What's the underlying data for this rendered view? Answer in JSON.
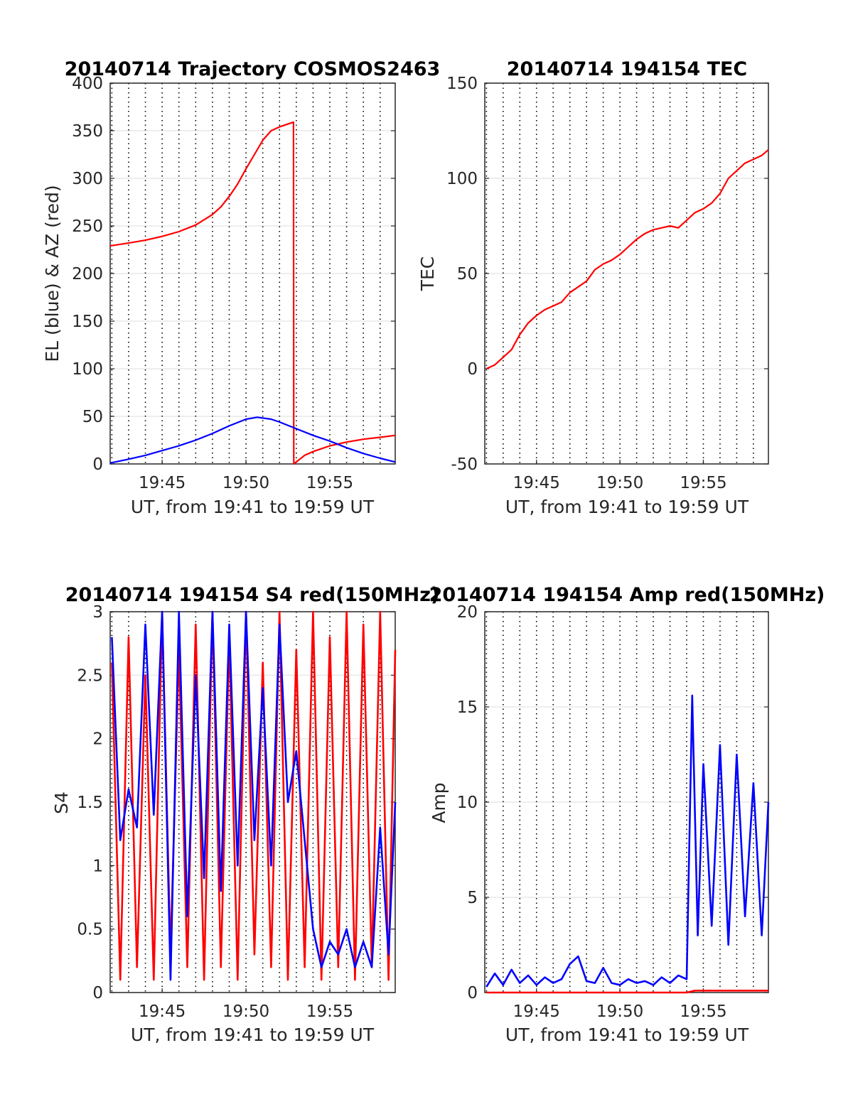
{
  "figure": {
    "background": "#ffffff"
  },
  "chart_data": [
    {
      "type": "line",
      "title": "20140714 Trajectory COSMOS2463",
      "xlabel": "UT, from 19:41 to 19:59 UT",
      "ylabel": "EL (blue) & AZ (red)",
      "xlim": [
        "19:41:54",
        "19:58:54"
      ],
      "ylim": [
        0,
        400
      ],
      "yticks": [
        0,
        50,
        100,
        150,
        200,
        250,
        300,
        350,
        400
      ],
      "xticks": [
        "19:45",
        "19:50",
        "19:55"
      ],
      "grid": "vertical dotted every 1 min, horizontal light",
      "series": [
        {
          "color": "#ff0000",
          "x": [
            "19:41:54",
            "19:43:00",
            "19:44:00",
            "19:45:00",
            "19:46:00",
            "19:47:00",
            "19:48:00",
            "19:48:30",
            "19:49:00",
            "19:49:30",
            "19:50:00",
            "19:50:30",
            "19:51:00",
            "19:51:30",
            "19:52:00",
            "19:52:30",
            "19:52:50",
            "19:52:51",
            "19:53:30",
            "19:54:00",
            "19:55:00",
            "19:56:00",
            "19:57:00",
            "19:58:00",
            "19:58:54"
          ],
          "values": [
            229,
            232,
            235,
            239,
            244,
            251,
            262,
            270,
            281,
            294,
            310,
            325,
            340,
            350,
            354,
            357,
            359,
            0,
            9,
            13,
            19,
            23,
            26,
            28,
            30
          ]
        },
        {
          "color": "#0000ff",
          "x": [
            "19:41:54",
            "19:43:00",
            "19:44:00",
            "19:45:00",
            "19:46:00",
            "19:47:00",
            "19:48:00",
            "19:49:00",
            "19:50:00",
            "19:50:40",
            "19:51:30",
            "19:52:00",
            "19:53:00",
            "19:54:00",
            "19:55:00",
            "19:56:00",
            "19:57:00",
            "19:58:00",
            "19:58:54"
          ],
          "values": [
            1,
            5,
            9,
            14,
            19,
            25,
            32,
            40,
            47,
            49,
            47,
            44,
            37,
            30,
            24,
            17,
            11,
            6,
            2
          ]
        }
      ]
    },
    {
      "type": "line",
      "title": "20140714 194154 TEC",
      "xlabel": "UT, from 19:41 to 19:59 UT",
      "ylabel": "TEC",
      "xlim": [
        "19:41:54",
        "19:58:54"
      ],
      "ylim": [
        -50,
        150
      ],
      "yticks": [
        -50,
        0,
        50,
        100,
        150
      ],
      "xticks": [
        "19:45",
        "19:50",
        "19:55"
      ],
      "grid": "vertical dotted every 1 min, horizontal light",
      "series": [
        {
          "color": "#ff0000",
          "x": [
            "19:42:00",
            "19:42:30",
            "19:43:00",
            "19:43:30",
            "19:44:00",
            "19:44:30",
            "19:45:00",
            "19:45:30",
            "19:46:00",
            "19:46:30",
            "19:47:00",
            "19:47:30",
            "19:48:00",
            "19:48:30",
            "19:49:00",
            "19:49:30",
            "19:50:00",
            "19:50:30",
            "19:51:00",
            "19:51:30",
            "19:52:00",
            "19:52:30",
            "19:53:00",
            "19:53:30",
            "19:54:00",
            "19:54:30",
            "19:55:00",
            "19:55:30",
            "19:56:00",
            "19:56:30",
            "19:57:00",
            "19:57:30",
            "19:58:00",
            "19:58:30",
            "19:58:54"
          ],
          "values": [
            0,
            2,
            6,
            10,
            18,
            24,
            28,
            31,
            33,
            35,
            40,
            43,
            46,
            52,
            55,
            57,
            60,
            64,
            68,
            71,
            73,
            74,
            75,
            74,
            78,
            82,
            84,
            87,
            92,
            100,
            104,
            108,
            110,
            112,
            115
          ]
        }
      ]
    },
    {
      "type": "line",
      "title": "20140714 194154 S4 red(150MHz)",
      "xlabel": "UT, from 19:41 to 19:59 UT",
      "ylabel": "S4",
      "xlim": [
        "19:41:54",
        "19:58:54"
      ],
      "ylim": [
        0,
        3
      ],
      "yticks": [
        0,
        0.5,
        1,
        1.5,
        2,
        2.5,
        3
      ],
      "ytick_labels": [
        "0",
        "0.5",
        "1",
        "1.5",
        "2",
        "2.5",
        "3"
      ],
      "xticks": [
        "19:45",
        "19:50",
        "19:55"
      ],
      "grid": "vertical dotted every 1 min, horizontal light",
      "series": [
        {
          "color": "#ff0000",
          "x": [
            "19:42:00",
            "19:42:30",
            "19:43:00",
            "19:43:30",
            "19:44:00",
            "19:44:30",
            "19:45:00",
            "19:45:30",
            "19:46:00",
            "19:46:30",
            "19:47:00",
            "19:47:30",
            "19:48:00",
            "19:48:30",
            "19:49:00",
            "19:49:30",
            "19:50:00",
            "19:50:30",
            "19:51:00",
            "19:51:30",
            "19:52:00",
            "19:52:30",
            "19:53:00",
            "19:53:30",
            "19:54:00",
            "19:54:30",
            "19:55:00",
            "19:55:30",
            "19:56:00",
            "19:56:30",
            "19:57:00",
            "19:57:30",
            "19:58:00",
            "19:58:30",
            "19:58:54"
          ],
          "values": [
            2.6,
            0.1,
            2.8,
            0.2,
            2.5,
            0.1,
            3.0,
            0.3,
            2.7,
            0.2,
            2.9,
            0.1,
            3.0,
            0.2,
            2.8,
            0.1,
            3.0,
            0.3,
            2.6,
            0.2,
            3.0,
            0.1,
            2.7,
            0.2,
            3.0,
            0.1,
            2.8,
            0.2,
            3.0,
            0.1,
            2.9,
            0.2,
            3.0,
            0.1,
            2.7
          ]
        },
        {
          "color": "#0000ff",
          "x": [
            "19:42:00",
            "19:42:30",
            "19:43:00",
            "19:43:30",
            "19:44:00",
            "19:44:30",
            "19:45:00",
            "19:45:30",
            "19:46:00",
            "19:46:30",
            "19:47:00",
            "19:47:30",
            "19:48:00",
            "19:48:30",
            "19:49:00",
            "19:49:30",
            "19:50:00",
            "19:50:30",
            "19:51:00",
            "19:51:30",
            "19:52:00",
            "19:52:30",
            "19:53:00",
            "19:53:30",
            "19:54:00",
            "19:54:30",
            "19:55:00",
            "19:55:30",
            "19:56:00",
            "19:56:30",
            "19:57:00",
            "19:57:30",
            "19:58:00",
            "19:58:30",
            "19:58:54"
          ],
          "values": [
            2.8,
            1.2,
            1.6,
            1.3,
            2.9,
            1.4,
            3.0,
            0.1,
            3.0,
            0.6,
            2.5,
            0.9,
            3.0,
            0.8,
            2.9,
            1.0,
            3.0,
            1.2,
            2.4,
            1.0,
            2.9,
            1.5,
            1.9,
            1.2,
            0.5,
            0.2,
            0.4,
            0.3,
            0.5,
            0.2,
            0.4,
            0.2,
            1.3,
            0.3,
            1.5
          ]
        }
      ]
    },
    {
      "type": "line",
      "title": "20140714 194154 Amp red(150MHz)",
      "xlabel": "UT, from 19:41 to 19:59 UT",
      "ylabel": "Amp",
      "xlim": [
        "19:41:54",
        "19:58:54"
      ],
      "ylim": [
        0,
        20
      ],
      "yticks": [
        0,
        5,
        10,
        15,
        20
      ],
      "xticks": [
        "19:45",
        "19:50",
        "19:55"
      ],
      "grid": "vertical dotted every 1 min, horizontal light",
      "series": [
        {
          "color": "#ff0000",
          "x": [
            "19:42:00",
            "19:54:00",
            "19:54:30",
            "19:55:00",
            "19:56:00",
            "19:57:00",
            "19:58:00",
            "19:58:54"
          ],
          "values": [
            0,
            0,
            0.1,
            0.1,
            0.1,
            0.1,
            0.1,
            0.1
          ]
        },
        {
          "color": "#0000ff",
          "x": [
            "19:42:00",
            "19:42:30",
            "19:43:00",
            "19:43:30",
            "19:44:00",
            "19:44:30",
            "19:45:00",
            "19:45:30",
            "19:46:00",
            "19:46:30",
            "19:47:00",
            "19:47:30",
            "19:48:00",
            "19:48:30",
            "19:49:00",
            "19:49:30",
            "19:50:00",
            "19:50:30",
            "19:51:00",
            "19:51:30",
            "19:52:00",
            "19:52:30",
            "19:53:00",
            "19:53:30",
            "19:54:00",
            "19:54:20",
            "19:54:40",
            "19:55:00",
            "19:55:30",
            "19:56:00",
            "19:56:30",
            "19:57:00",
            "19:57:30",
            "19:58:00",
            "19:58:30",
            "19:58:54"
          ],
          "values": [
            0.3,
            1.0,
            0.4,
            1.2,
            0.5,
            0.9,
            0.4,
            0.8,
            0.5,
            0.7,
            1.5,
            1.9,
            0.6,
            0.5,
            1.3,
            0.5,
            0.4,
            0.7,
            0.5,
            0.6,
            0.4,
            0.8,
            0.5,
            0.9,
            0.7,
            15.6,
            3.0,
            12.0,
            3.5,
            13.0,
            2.5,
            12.5,
            4.0,
            11.0,
            3.0,
            10.0
          ]
        }
      ]
    }
  ]
}
